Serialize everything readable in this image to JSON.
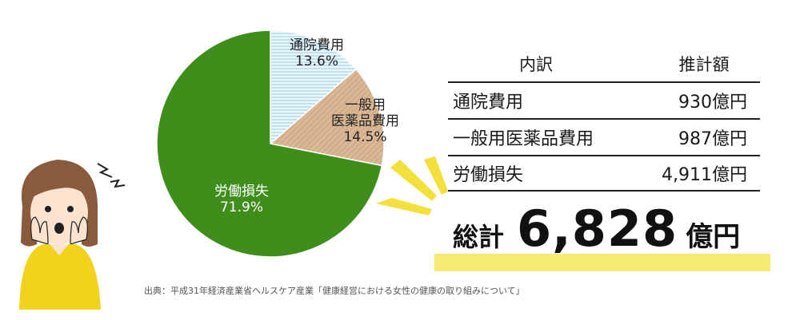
{
  "chart_data": {
    "type": "pie",
    "slices": [
      {
        "label": "通院費用",
        "value": 13.6,
        "display": "13.6%",
        "color": "#dff0f7"
      },
      {
        "label": "一般用医薬品費用",
        "label_lines": [
          "一般用",
          "医薬品費用"
        ],
        "value": 14.5,
        "display": "14.5%",
        "color": "#d8b48f"
      },
      {
        "label": "労働損失",
        "value": 71.9,
        "display": "71.9%",
        "color": "#3f8e1c"
      }
    ]
  },
  "table": {
    "header_category": "内訳",
    "header_value": "推計額",
    "rows": [
      {
        "category": "通院費用",
        "value": "930億円"
      },
      {
        "category": "一般用医薬品費用",
        "value": "987億円"
      },
      {
        "category": "労働損失",
        "value": "4,911億円"
      }
    ]
  },
  "total": {
    "label": "総計",
    "value": "6,828",
    "unit": "億円"
  },
  "source": "出典：平成31年経済産業省ヘルスケア産業「健康経営における女性の健康の取り組みについて」",
  "colors": {
    "accent_yellow": "#f3e03a",
    "text": "#1a1a1a",
    "sweater": "#f2d21b",
    "hair": "#8a5a3c"
  }
}
